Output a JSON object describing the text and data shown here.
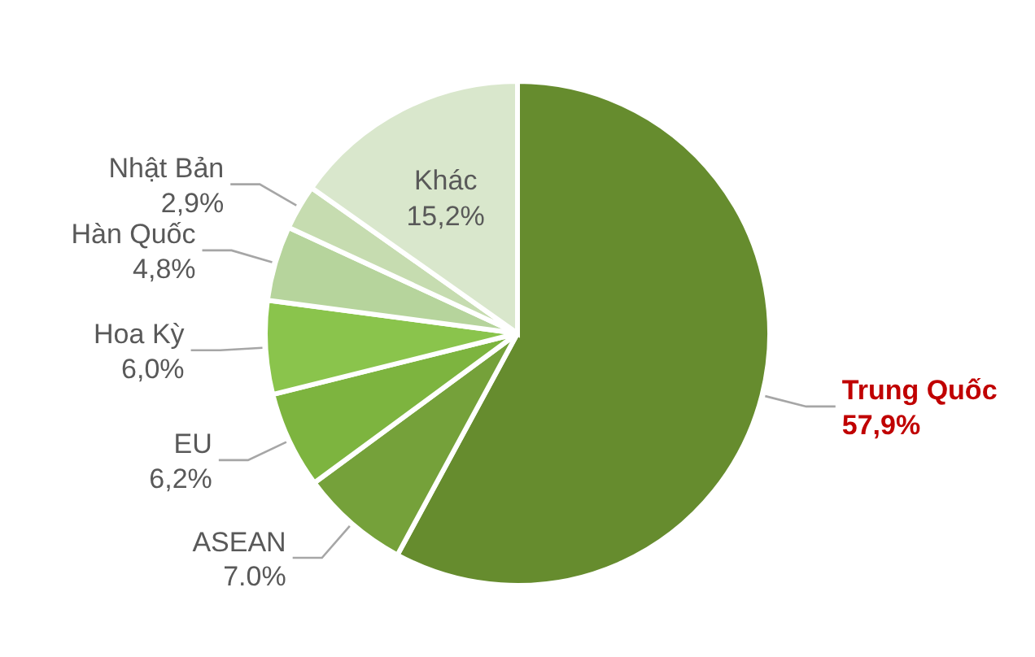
{
  "chart_data": {
    "type": "pie",
    "categories": [
      "Trung Quốc",
      "ASEAN",
      "EU",
      "Hoa Kỳ",
      "Hàn Quốc",
      "Nhật Bản",
      "Khác"
    ],
    "values": [
      57.9,
      7.0,
      6.2,
      6.0,
      4.8,
      2.9,
      15.2
    ],
    "value_labels": [
      "57,9%",
      "7.0%",
      "6,2%",
      "6,0%",
      "4,8%",
      "2,9%",
      "15,2%"
    ],
    "colors": [
      "#668c2e",
      "#75a13a",
      "#7db43f",
      "#8ac44c",
      "#b6d49c",
      "#c6dcb0",
      "#d9e7cc"
    ]
  }
}
